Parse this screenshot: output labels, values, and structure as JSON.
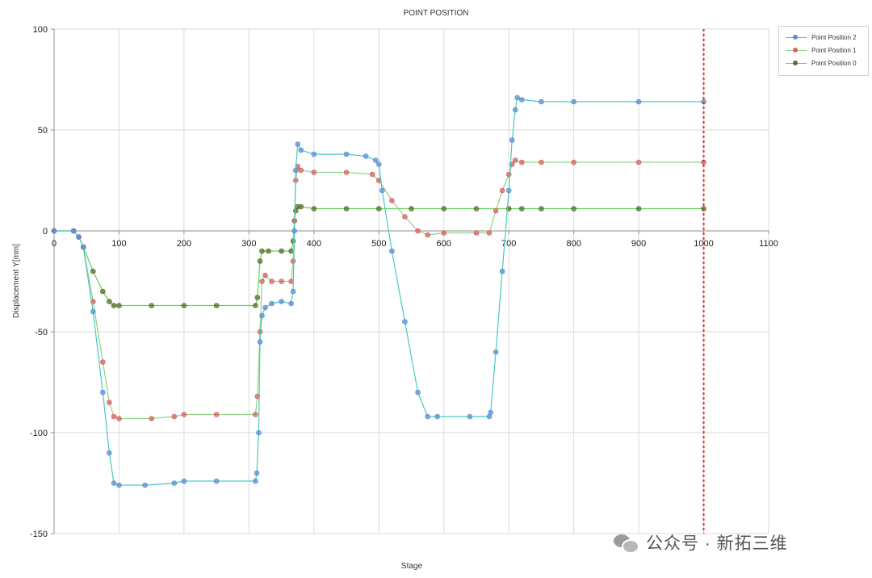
{
  "chart_data": {
    "type": "scatter",
    "title": "POINT POSITION",
    "xlabel": "Stage",
    "ylabel": "Displacement Y[mm]",
    "xlim": [
      0,
      1100
    ],
    "ylim": [
      -150,
      100
    ],
    "xticks": [
      0,
      100,
      200,
      300,
      400,
      500,
      600,
      700,
      800,
      900,
      1000,
      1100
    ],
    "yticks": [
      100,
      50,
      0,
      -50,
      -100,
      -150
    ],
    "grid": true,
    "legend_position": "top-right",
    "reference_line": {
      "x": 1000,
      "style": "dotted",
      "color": "#e0302a"
    },
    "series": [
      {
        "name": "Point Position 2",
        "line_color": "#49c9c0",
        "marker_color": "#5b8fd6",
        "points": [
          [
            0,
            0
          ],
          [
            30,
            0
          ],
          [
            38,
            -3
          ],
          [
            45,
            -8
          ],
          [
            60,
            -40
          ],
          [
            75,
            -80
          ],
          [
            85,
            -110
          ],
          [
            92,
            -125
          ],
          [
            100,
            -126
          ],
          [
            140,
            -126
          ],
          [
            185,
            -125
          ],
          [
            200,
            -124
          ],
          [
            250,
            -124
          ],
          [
            310,
            -124
          ],
          [
            312,
            -120
          ],
          [
            315,
            -100
          ],
          [
            317,
            -55
          ],
          [
            320,
            -42
          ],
          [
            325,
            -38
          ],
          [
            335,
            -36
          ],
          [
            350,
            -35
          ],
          [
            365,
            -36
          ],
          [
            368,
            -30
          ],
          [
            370,
            0
          ],
          [
            372,
            30
          ],
          [
            375,
            43
          ],
          [
            380,
            40
          ],
          [
            400,
            38
          ],
          [
            450,
            38
          ],
          [
            480,
            37
          ],
          [
            495,
            35
          ],
          [
            500,
            33
          ],
          [
            505,
            20
          ],
          [
            520,
            -10
          ],
          [
            540,
            -45
          ],
          [
            560,
            -80
          ],
          [
            575,
            -92
          ],
          [
            590,
            -92
          ],
          [
            640,
            -92
          ],
          [
            670,
            -92
          ],
          [
            672,
            -90
          ],
          [
            680,
            -60
          ],
          [
            690,
            -20
          ],
          [
            700,
            20
          ],
          [
            705,
            45
          ],
          [
            710,
            60
          ],
          [
            713,
            66
          ],
          [
            720,
            65
          ],
          [
            750,
            64
          ],
          [
            800,
            64
          ],
          [
            900,
            64
          ],
          [
            1000,
            64
          ]
        ]
      },
      {
        "name": "Point Position 1",
        "line_color": "#8fd28a",
        "marker_color": "#d7615f",
        "points": [
          [
            0,
            0
          ],
          [
            30,
            0
          ],
          [
            38,
            -3
          ],
          [
            45,
            -8
          ],
          [
            60,
            -35
          ],
          [
            75,
            -65
          ],
          [
            85,
            -85
          ],
          [
            92,
            -92
          ],
          [
            100,
            -93
          ],
          [
            150,
            -93
          ],
          [
            185,
            -92
          ],
          [
            200,
            -91
          ],
          [
            250,
            -91
          ],
          [
            310,
            -91
          ],
          [
            313,
            -82
          ],
          [
            317,
            -50
          ],
          [
            320,
            -25
          ],
          [
            325,
            -22
          ],
          [
            335,
            -25
          ],
          [
            350,
            -25
          ],
          [
            365,
            -25
          ],
          [
            368,
            -15
          ],
          [
            370,
            5
          ],
          [
            372,
            25
          ],
          [
            375,
            32
          ],
          [
            380,
            30
          ],
          [
            400,
            29
          ],
          [
            450,
            29
          ],
          [
            490,
            28
          ],
          [
            500,
            25
          ],
          [
            520,
            15
          ],
          [
            540,
            7
          ],
          [
            560,
            0
          ],
          [
            575,
            -2
          ],
          [
            600,
            -1
          ],
          [
            650,
            -1
          ],
          [
            670,
            -1
          ],
          [
            680,
            10
          ],
          [
            690,
            20
          ],
          [
            700,
            28
          ],
          [
            705,
            33
          ],
          [
            710,
            35
          ],
          [
            720,
            34
          ],
          [
            750,
            34
          ],
          [
            800,
            34
          ],
          [
            900,
            34
          ],
          [
            1000,
            34
          ]
        ]
      },
      {
        "name": "Point Position 0",
        "line_color": "#5fd05a",
        "marker_color": "#5a6f28",
        "points": [
          [
            0,
            0
          ],
          [
            30,
            0
          ],
          [
            38,
            -3
          ],
          [
            45,
            -8
          ],
          [
            60,
            -20
          ],
          [
            75,
            -30
          ],
          [
            85,
            -35
          ],
          [
            92,
            -37
          ],
          [
            100,
            -37
          ],
          [
            150,
            -37
          ],
          [
            200,
            -37
          ],
          [
            250,
            -37
          ],
          [
            310,
            -37
          ],
          [
            313,
            -33
          ],
          [
            317,
            -15
          ],
          [
            320,
            -10
          ],
          [
            330,
            -10
          ],
          [
            350,
            -10
          ],
          [
            365,
            -10
          ],
          [
            368,
            -5
          ],
          [
            370,
            5
          ],
          [
            372,
            10
          ],
          [
            375,
            12
          ],
          [
            380,
            12
          ],
          [
            400,
            11
          ],
          [
            450,
            11
          ],
          [
            500,
            11
          ],
          [
            550,
            11
          ],
          [
            600,
            11
          ],
          [
            650,
            11
          ],
          [
            700,
            11
          ],
          [
            720,
            11
          ],
          [
            750,
            11
          ],
          [
            800,
            11
          ],
          [
            900,
            11
          ],
          [
            1000,
            11
          ]
        ]
      }
    ]
  },
  "watermark": {
    "text": "公众号 · 新拓三维",
    "icon": "wechat-icon"
  }
}
